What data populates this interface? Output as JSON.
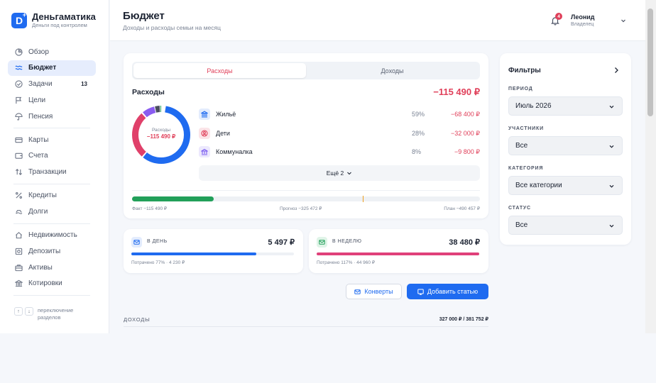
{
  "app": {
    "name": "Деньгаматика",
    "tagline": "Деньги под контролем",
    "logo_letter": "D"
  },
  "sidebar": {
    "groups": [
      [
        {
          "label": "Обзор",
          "icon": "pie-chart-icon"
        },
        {
          "label": "Бюджет",
          "icon": "budget-icon",
          "active": true
        },
        {
          "label": "Задачи",
          "icon": "check-circle-icon",
          "count": "13"
        },
        {
          "label": "Цели",
          "icon": "flag-icon"
        },
        {
          "label": "Пенсия",
          "icon": "umbrella-icon"
        }
      ],
      [
        {
          "label": "Карты",
          "icon": "card-icon"
        },
        {
          "label": "Счета",
          "icon": "wallet-icon"
        },
        {
          "label": "Транзакции",
          "icon": "transfer-icon"
        }
      ],
      [
        {
          "label": "Кредиты",
          "icon": "percent-icon"
        },
        {
          "label": "Долги",
          "icon": "debt-icon"
        }
      ],
      [
        {
          "label": "Недвижимость",
          "icon": "house-icon"
        },
        {
          "label": "Депозиты",
          "icon": "safe-icon"
        },
        {
          "label": "Активы",
          "icon": "briefcase-icon"
        },
        {
          "label": "Котировки",
          "icon": "bank-icon"
        }
      ]
    ],
    "switch": {
      "up": "↑",
      "down": "↓",
      "label": "переключение разделов"
    }
  },
  "header": {
    "title": "Бюджет",
    "subtitle": "Доходы и расходы семьи на месяц",
    "notifications": "4",
    "user": {
      "name": "Леонид",
      "role": "Владелец"
    }
  },
  "budget": {
    "tabs": {
      "expenses": "Расходы",
      "income": "Доходы"
    },
    "section_title": "Расходы",
    "total": "−115 490 ₽",
    "donut": {
      "label": "Расходы",
      "value": "−115 490 ₽"
    },
    "categories": [
      {
        "name": "Жильё",
        "pct": "59%",
        "amount": "−68 400 ₽",
        "icon": "building-icon",
        "color": "#1f6bf0",
        "bg": "#e3ecfd"
      },
      {
        "name": "Дети",
        "pct": "28%",
        "amount": "−32 000 ₽",
        "icon": "child-icon",
        "color": "#e0405a",
        "bg": "#fbe4e8"
      },
      {
        "name": "Коммуналка",
        "pct": "8%",
        "amount": "−9 800 ₽",
        "icon": "utility-icon",
        "color": "#7a5cf0",
        "bg": "#ece8fd"
      }
    ],
    "more_label": "Ещё 2",
    "progress": {
      "fact_label": "Факт −115 490 ₽",
      "forecast_label": "Прогноз −325 472 ₽",
      "plan_label": "План −490 457 ₽",
      "fact_fraction": 0.235,
      "forecast_fraction": 0.663
    }
  },
  "daily": {
    "label": "В ДЕНЬ",
    "value": "5 497 ₽",
    "note": "Потрачено 77% · 4 230 ₽",
    "fraction": 0.77,
    "color": "#1f6bf0"
  },
  "weekly": {
    "label": "В НЕДЕЛЮ",
    "value": "38 480 ₽",
    "note": "Потрачено 117% · 44 960 ₽",
    "fraction": 1.0,
    "color": "#e0407a"
  },
  "actions": {
    "envelopes": "Конверты",
    "add_item": "Добавить статью"
  },
  "income_section": {
    "label": "ДОХОДЫ",
    "value": "327 000 ₽ / 381 752 ₽"
  },
  "filters": {
    "title": "Фильтры",
    "period": {
      "label": "ПЕРИОД",
      "value": "Июль 2026"
    },
    "members": {
      "label": "УЧАСТНИКИ",
      "value": "Все"
    },
    "category": {
      "label": "КАТЕГОРИЯ",
      "value": "Все категории"
    },
    "status": {
      "label": "СТАТУС",
      "value": "Все"
    }
  }
}
